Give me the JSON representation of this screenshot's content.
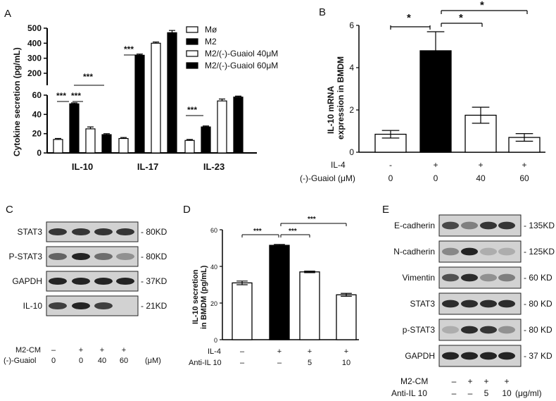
{
  "panels": {
    "A": {
      "letter": "A",
      "ylabel": "Cytokine secretion (pg/mL)",
      "legend": [
        "Mø",
        "M2",
        "M2/(-)-Guaiol 40μM",
        "M2/(-)-Guaiol 60μM"
      ],
      "sig": [
        "***",
        "***",
        "***",
        "***",
        "***",
        "***"
      ]
    },
    "B": {
      "letter": "B",
      "ylabel": [
        "IL-10 mRNA",
        "expression in BMDM"
      ],
      "row_labels": [
        "IL-4",
        "(-)-Guaiol (μM)"
      ],
      "row_values": [
        [
          "-",
          "+",
          "+",
          "+"
        ],
        [
          "0",
          "0",
          "40",
          "60"
        ]
      ],
      "sig": [
        "*",
        "*",
        "*"
      ]
    },
    "C": {
      "letter": "C",
      "bands": [
        "STAT3",
        "P-STAT3",
        "GAPDH",
        "IL-10"
      ],
      "sizes": [
        "80KD",
        "80KD",
        "37KD",
        "21KD"
      ],
      "row_labels": [
        "M2-CM",
        "(-)-Guaiol"
      ],
      "row_values": [
        [
          "–",
          "+",
          "+",
          "+"
        ],
        [
          "0",
          "0",
          "40",
          "60"
        ]
      ],
      "unit": "(μM)"
    },
    "D": {
      "letter": "D",
      "ylabel": [
        "IL-10 secretion",
        "in BMDM (pg/mL)"
      ],
      "row_labels": [
        "IL-4",
        "Anti-IL 10"
      ],
      "row_values": [
        [
          "–",
          "+",
          "+",
          "+"
        ],
        [
          "–",
          "–",
          "5",
          "10"
        ]
      ],
      "sig": [
        "***",
        "***",
        "***"
      ]
    },
    "E": {
      "letter": "E",
      "bands": [
        "E-cadherin",
        "N-cadherin",
        "Vimentin",
        "STAT3",
        "p-STAT3",
        "GAPDH"
      ],
      "sizes": [
        "135KD",
        "125KD",
        "60 KD",
        "80 KD",
        "80 KD",
        "37 KD"
      ],
      "row_labels": [
        "M2-CM",
        "Anti-IL 10"
      ],
      "row_values": [
        [
          "–",
          "+",
          "+",
          "+"
        ],
        [
          "–",
          "–",
          "5",
          "10"
        ]
      ],
      "unit": "(μg/ml)"
    }
  },
  "chart_data": [
    {
      "id": "A",
      "type": "bar",
      "categories": [
        "IL-10",
        "IL-17",
        "IL-23"
      ],
      "series": [
        {
          "name": "Mø",
          "values": [
            14,
            15,
            13
          ],
          "errors": [
            1,
            1,
            1
          ]
        },
        {
          "name": "M2",
          "values": [
            51,
            320,
            27
          ],
          "errors": [
            1,
            8,
            1
          ]
        },
        {
          "name": "M2/(-)-Guaiol 40μM",
          "values": [
            25,
            400,
            54
          ],
          "errors": [
            2,
            8,
            2
          ]
        },
        {
          "name": "M2/(-)-Guaiol 60μM",
          "values": [
            19,
            470,
            58
          ],
          "errors": [
            1,
            15,
            1
          ]
        }
      ],
      "ylabel": "Cytokine secretion (pg/mL)",
      "axis_break": [
        60,
        120
      ],
      "yticks_lower": [
        0,
        20,
        40,
        60
      ],
      "yticks_upper": [
        200,
        300,
        400,
        500
      ],
      "ylim": [
        0,
        500
      ],
      "legend_position": "top-right"
    },
    {
      "id": "B",
      "type": "bar",
      "categories": [
        "1",
        "2",
        "3",
        "4"
      ],
      "values": [
        0.85,
        4.8,
        1.75,
        0.7
      ],
      "errors": [
        0.18,
        0.9,
        0.38,
        0.18
      ],
      "ylabel": "IL-10 mRNA expression in BMDM",
      "yticks": [
        0,
        2,
        4,
        6
      ],
      "ylim": [
        0,
        6
      ]
    },
    {
      "id": "D",
      "type": "bar",
      "categories": [
        "1",
        "2",
        "3",
        "4"
      ],
      "values": [
        31,
        51.5,
        37,
        24.5
      ],
      "errors": [
        1,
        0.5,
        0.4,
        0.8
      ],
      "ylabel": "IL-10 secretion in BMDM (pg/mL)",
      "yticks": [
        0,
        20,
        40,
        60
      ],
      "ylim": [
        0,
        60
      ]
    }
  ],
  "colors": {
    "filled": "#000000",
    "open": "#ffffff",
    "stroke": "#000000",
    "band": "#1a1a1a",
    "blot_bg": "#c8c8c8"
  }
}
